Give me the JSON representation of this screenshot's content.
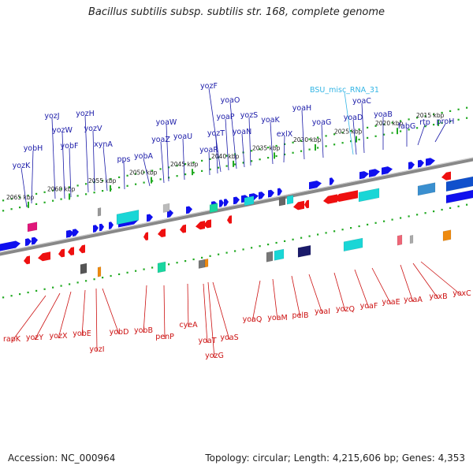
{
  "title": "Bacillus subtilis subsp. subtilis str. 168, complete genome",
  "footer": {
    "accession": "Accession: NC_000964",
    "summary": "Topology: circular; Length: 4,215,606 bp; Genes: 4,353"
  },
  "colors": {
    "forward_gene": "#1010ee",
    "reverse_gene": "#ee1010",
    "forward_label": "#1a1aa8",
    "reverse_label": "#cc1111",
    "rna_label": "#33b5e5",
    "backbone": "#888888",
    "dots": "#22aa22"
  },
  "scale_labels": [
    "2065 kbp",
    "2060 kbp",
    "2055 kbp",
    "2050 kbp",
    "2045 kbp",
    "2040 kbp",
    "2035 kbp",
    "2030 kbp",
    "2025 kbp",
    "2020 kbp",
    "2015 kbp"
  ],
  "forward_labels": [
    "yozK",
    "yobH",
    "yozJ",
    "yozW",
    "yobF",
    "yozH",
    "yozV",
    "xynA",
    "pps",
    "yobA",
    "yoaZ",
    "yoaW",
    "yoaU",
    "yoaR",
    "yozT",
    "yozF",
    "yoaP",
    "yoaO",
    "yoaN",
    "yozS",
    "yoaK",
    "exlX",
    "yoaH",
    "yoaG",
    "yoaD",
    "yoaC",
    "yoaB",
    "fabG",
    "rtp",
    "proH"
  ],
  "rna_labels": [
    "BSU_misc_RNA_31"
  ],
  "reverse_labels": [
    "rapK",
    "yozY",
    "yozX",
    "yobE",
    "yozI",
    "yobD",
    "yobB",
    "penP",
    "cyeA",
    "yoaT",
    "yozG",
    "yoaS",
    "yoaQ",
    "yoaM",
    "pelB",
    "yoaI",
    "yozQ",
    "yoaF",
    "yoaE",
    "yoaA",
    "yoxB",
    "yoxC"
  ]
}
